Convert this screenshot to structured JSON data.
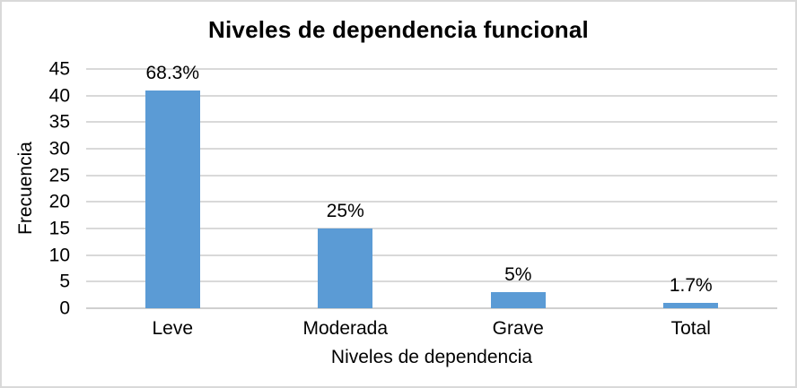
{
  "chart_data": {
    "type": "bar",
    "title": "Niveles de dependencia funcional",
    "xlabel": "Niveles de dependencia",
    "ylabel": "Frecuencia",
    "categories": [
      "Leve",
      "Moderada",
      "Grave",
      "Total"
    ],
    "values": [
      41,
      15,
      3,
      1
    ],
    "data_labels": [
      "68.3%",
      "25%",
      "5%",
      "1.7%"
    ],
    "ylim": [
      0,
      45
    ],
    "ytick_step": 5,
    "yticks": [
      0,
      5,
      10,
      15,
      20,
      25,
      30,
      35,
      40,
      45
    ],
    "grid": true,
    "legend": false,
    "colors": {
      "bar": "#5B9BD5",
      "gridline": "#D9D9D9",
      "axis_line": "#D0D0D0",
      "text": "#000000",
      "border": "#D9D9D9",
      "background": "#FFFFFF"
    }
  }
}
